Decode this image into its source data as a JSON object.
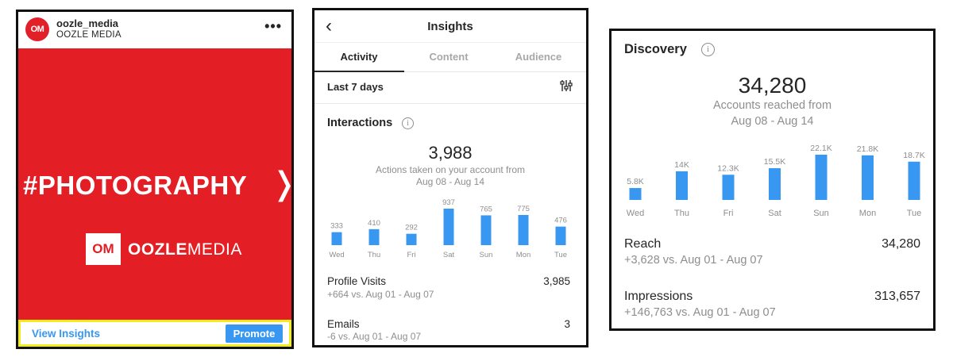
{
  "post": {
    "username": "oozle_media",
    "brand": "OOZLE MEDIA",
    "avatar_text": "OM",
    "more_glyph": "•••",
    "hashtag": "#PHOTOGRAPHY",
    "next_glyph": "❭",
    "logo_mark": "OM",
    "logo_bold": "OOZLE",
    "logo_light": "MEDIA",
    "view_insights": "View Insights",
    "promote": "Promote",
    "colors": {
      "brand_red": "#e31e24",
      "link_blue": "#3897f0",
      "highlight": "#f4ed1c"
    }
  },
  "insights": {
    "back_glyph": "‹",
    "title": "Insights",
    "tabs": [
      {
        "label": "Activity",
        "active": true
      },
      {
        "label": "Content",
        "active": false
      },
      {
        "label": "Audience",
        "active": false
      }
    ],
    "range": "Last 7 days",
    "filter_icon": "sliders-icon",
    "section_title": "Interactions",
    "info_glyph": "i",
    "total": "3,988",
    "total_caption_1": "Actions taken on your account from",
    "total_caption_2": "Aug 08 - Aug 14",
    "rows": [
      {
        "label": "Profile Visits",
        "value": "3,985",
        "delta": "+664 vs. Aug 01 - Aug 07"
      },
      {
        "label": "Emails",
        "value": "3",
        "delta": "-6 vs. Aug 01 - Aug 07"
      }
    ]
  },
  "discovery": {
    "title": "Discovery",
    "info_glyph": "i",
    "total": "34,280",
    "total_caption_1": "Accounts reached from",
    "total_caption_2": "Aug 08 - Aug 14",
    "rows": [
      {
        "label": "Reach",
        "value": "34,280",
        "delta": "+3,628 vs. Aug 01 - Aug 07"
      },
      {
        "label": "Impressions",
        "value": "313,657",
        "delta": "+146,763 vs. Aug 01 - Aug 07"
      }
    ]
  },
  "chart_data": [
    {
      "type": "bar",
      "categories": [
        "Wed",
        "Thu",
        "Fri",
        "Sat",
        "Sun",
        "Mon",
        "Tue"
      ],
      "values": [
        333,
        410,
        292,
        937,
        765,
        775,
        476
      ],
      "labels": [
        "333",
        "410",
        "292",
        "937",
        "765",
        "775",
        "476"
      ],
      "ylim": [
        0,
        937
      ],
      "grid": false,
      "color": "#3897f0"
    },
    {
      "type": "bar",
      "categories": [
        "Wed",
        "Thu",
        "Fri",
        "Sat",
        "Sun",
        "Mon",
        "Tue"
      ],
      "values": [
        5800,
        14000,
        12300,
        15500,
        22100,
        21800,
        18700
      ],
      "labels": [
        "5.8K",
        "14K",
        "12.3K",
        "15.5K",
        "22.1K",
        "21.8K",
        "18.7K"
      ],
      "ylim": [
        0,
        22100
      ],
      "grid": false,
      "color": "#3897f0"
    }
  ]
}
